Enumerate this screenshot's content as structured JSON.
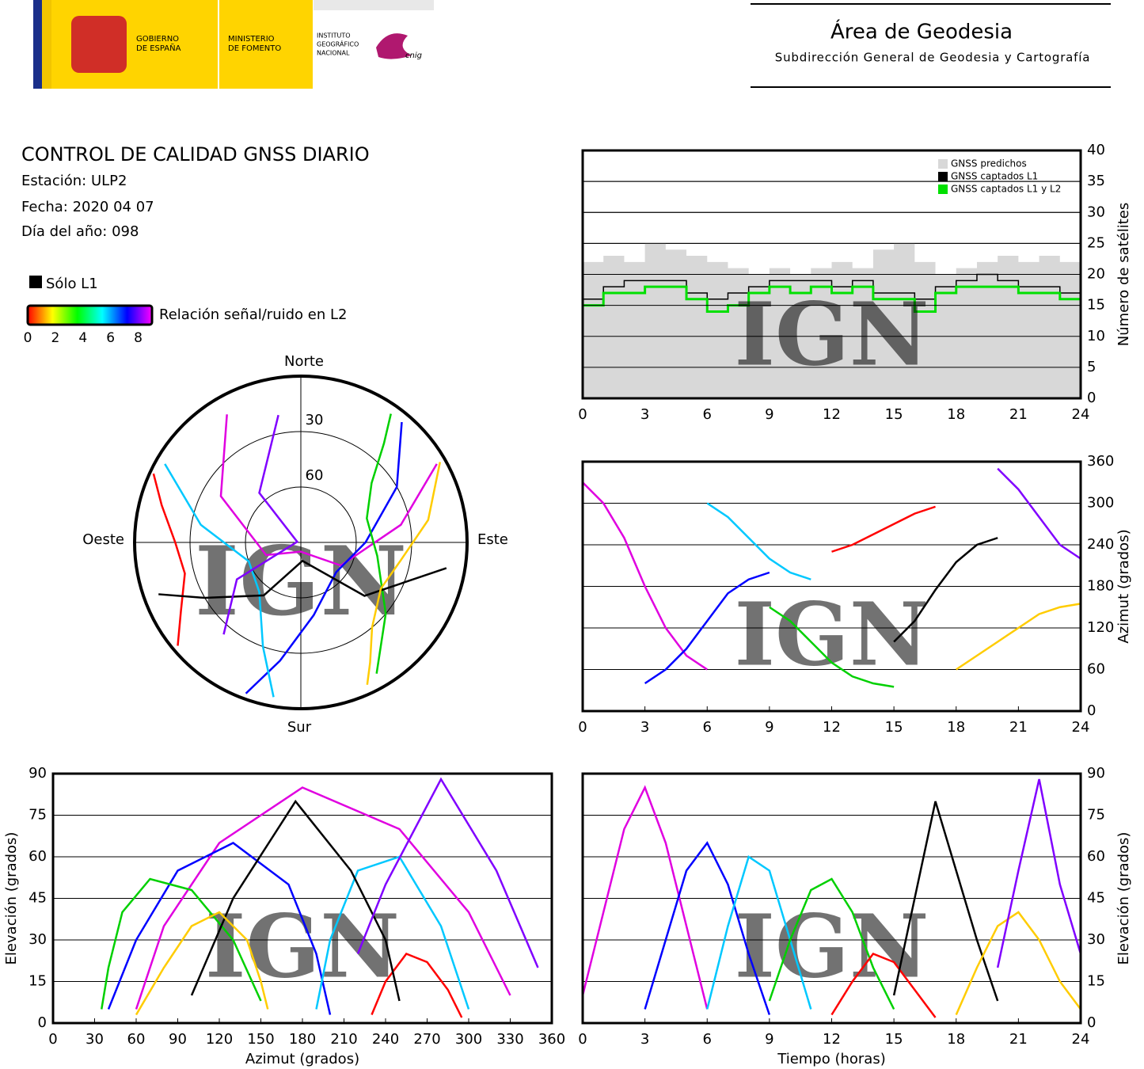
{
  "logos": {
    "gobierno": [
      "GOBIERNO",
      "DE ESPAÑA"
    ],
    "ministerio": [
      "MINISTERIO",
      "DE FOMENTO"
    ],
    "instituto": [
      "INSTITUTO",
      "GEOGRÁFICO",
      "NACIONAL"
    ],
    "cnig": "cnig"
  },
  "header": {
    "title": "Área de Geodesia",
    "subtitle": "Subdirección General de Geodesia y Cartografía"
  },
  "report": {
    "title": "CONTROL DE CALIDAD GNSS DIARIO",
    "station": "Estación: ULP2",
    "date": "Fecha: 2020 04 07",
    "doy": "Día del año: 098"
  },
  "legend": {
    "l1_only": "Sólo L1",
    "l1_color": "#000000",
    "snr_label": "Relación señal/ruido en L2",
    "snr_lim": [
      0,
      9
    ],
    "snr_ticks": [
      0,
      2,
      4,
      6,
      8
    ],
    "snr_colors": [
      "#ff0000",
      "#ffff00",
      "#00ff00",
      "#00ffff",
      "#0000ff",
      "#ff00ff"
    ]
  },
  "watermark": "IGN",
  "chart_data": [
    {
      "type": "polar",
      "rlim": [
        90,
        0
      ],
      "rings": [
        30,
        60
      ],
      "directions": {
        "north": "Norte",
        "east": "Este",
        "south": "Sur",
        "west": "Oeste"
      },
      "series": [
        {
          "color": "#e000e0",
          "azimuth": [
            330,
            300,
            250,
            180,
            120,
            80,
            60
          ],
          "elevation": [
            10,
            40,
            70,
            85,
            65,
            35,
            5
          ]
        },
        {
          "color": "#0000ff",
          "azimuth": [
            40,
            60,
            90,
            130,
            170,
            190,
            200
          ],
          "elevation": [
            5,
            30,
            55,
            65,
            50,
            25,
            3
          ]
        },
        {
          "color": "#00c8ff",
          "azimuth": [
            300,
            280,
            250,
            220,
            200,
            190
          ],
          "elevation": [
            5,
            35,
            60,
            55,
            30,
            5
          ]
        },
        {
          "color": "#00d000",
          "azimuth": [
            150,
            130,
            100,
            70,
            50,
            40,
            35
          ],
          "elevation": [
            8,
            30,
            48,
            52,
            40,
            20,
            5
          ]
        },
        {
          "color": "#ff0000",
          "azimuth": [
            230,
            240,
            255,
            270,
            285,
            295
          ],
          "elevation": [
            3,
            15,
            25,
            22,
            12,
            2
          ]
        },
        {
          "color": "#000000",
          "azimuth": [
            100,
            130,
            175,
            215,
            240,
            250
          ],
          "elevation": [
            10,
            45,
            80,
            55,
            30,
            8
          ]
        },
        {
          "color": "#ffcc00",
          "azimuth": [
            60,
            80,
            100,
            120,
            140,
            150,
            155
          ],
          "elevation": [
            3,
            20,
            35,
            40,
            30,
            15,
            5
          ]
        },
        {
          "color": "#8000ff",
          "azimuth": [
            350,
            320,
            280,
            240,
            220
          ],
          "elevation": [
            20,
            55,
            88,
            50,
            25
          ]
        }
      ]
    },
    {
      "type": "step",
      "ylabel": "Número de satélites",
      "y_axis_side": "right",
      "legend": "top-right",
      "xlim": [
        0,
        24
      ],
      "xticks": [
        0,
        3,
        6,
        9,
        12,
        15,
        18,
        21,
        24
      ],
      "ylim": [
        0,
        40
      ],
      "yticks": [
        0,
        5,
        10,
        15,
        20,
        25,
        30,
        35,
        40
      ],
      "grid": true,
      "x": [
        0,
        1,
        2,
        3,
        4,
        5,
        6,
        7,
        8,
        9,
        10,
        11,
        12,
        13,
        14,
        15,
        16,
        17,
        18,
        19,
        20,
        21,
        22,
        23,
        24
      ],
      "series": [
        {
          "name": "GNSS predichos",
          "color": "#d8d8d8",
          "fill": true,
          "values": [
            22,
            23,
            22,
            25,
            24,
            23,
            22,
            21,
            20,
            21,
            20,
            21,
            22,
            21,
            24,
            25,
            22,
            20,
            21,
            22,
            23,
            22,
            23,
            22,
            21
          ]
        },
        {
          "name": "GNSS captados L1",
          "color": "#000000",
          "values": [
            16,
            18,
            19,
            19,
            19,
            17,
            16,
            17,
            18,
            19,
            19,
            19,
            18,
            19,
            17,
            17,
            16,
            18,
            19,
            20,
            19,
            18,
            18,
            17,
            16
          ]
        },
        {
          "name": "GNSS captados L1 y L2",
          "color": "#00e000",
          "values": [
            15,
            17,
            17,
            18,
            18,
            16,
            14,
            15,
            17,
            18,
            17,
            18,
            17,
            18,
            16,
            16,
            14,
            17,
            18,
            18,
            18,
            17,
            17,
            16,
            16
          ]
        }
      ]
    },
    {
      "type": "line",
      "ylabel": "Azimut (grados)",
      "y_axis_side": "right",
      "xlim": [
        0,
        24
      ],
      "xticks": [
        0,
        3,
        6,
        9,
        12,
        15,
        18,
        21,
        24
      ],
      "ylim": [
        0,
        360
      ],
      "yticks": [
        0,
        60,
        120,
        180,
        240,
        300,
        360
      ],
      "grid": true,
      "series": [
        {
          "color": "#e000e0",
          "x": [
            0,
            1,
            2,
            3,
            4,
            5,
            6
          ],
          "values": [
            330,
            300,
            250,
            180,
            120,
            80,
            60
          ]
        },
        {
          "color": "#0000ff",
          "x": [
            3,
            4,
            5,
            6,
            7,
            8,
            9
          ],
          "values": [
            40,
            60,
            90,
            130,
            170,
            190,
            200
          ]
        },
        {
          "color": "#00c8ff",
          "x": [
            6,
            7,
            8,
            9,
            10,
            11
          ],
          "values": [
            300,
            280,
            250,
            220,
            200,
            190
          ]
        },
        {
          "color": "#00d000",
          "x": [
            9,
            10,
            11,
            12,
            13,
            14,
            15
          ],
          "values": [
            150,
            130,
            100,
            70,
            50,
            40,
            35
          ]
        },
        {
          "color": "#ff0000",
          "x": [
            12,
            13,
            14,
            15,
            16,
            17
          ],
          "values": [
            230,
            240,
            255,
            270,
            285,
            295
          ]
        },
        {
          "color": "#000000",
          "x": [
            15,
            16,
            17,
            18,
            19,
            20
          ],
          "values": [
            100,
            130,
            175,
            215,
            240,
            250
          ]
        },
        {
          "color": "#ffcc00",
          "x": [
            18,
            19,
            20,
            21,
            22,
            23,
            24
          ],
          "values": [
            60,
            80,
            100,
            120,
            140,
            150,
            155
          ]
        },
        {
          "color": "#8000ff",
          "x": [
            20,
            21,
            22,
            23,
            24
          ],
          "values": [
            350,
            320,
            280,
            240,
            220
          ]
        }
      ]
    },
    {
      "type": "line",
      "xlabel": "Azimut (grados)",
      "ylabel": "Elevación (grados)",
      "y_axis_side": "left",
      "xlim": [
        0,
        360
      ],
      "xticks": [
        0,
        30,
        60,
        90,
        120,
        150,
        180,
        210,
        240,
        270,
        300,
        330,
        360
      ],
      "ylim": [
        0,
        90
      ],
      "yticks": [
        0,
        15,
        30,
        45,
        60,
        75,
        90
      ],
      "grid": true,
      "series": [
        {
          "color": "#e000e0",
          "x": [
            330,
            300,
            250,
            180,
            120,
            80,
            60
          ],
          "values": [
            10,
            40,
            70,
            85,
            65,
            35,
            5
          ]
        },
        {
          "color": "#0000ff",
          "x": [
            40,
            60,
            90,
            130,
            170,
            190,
            200
          ],
          "values": [
            5,
            30,
            55,
            65,
            50,
            25,
            3
          ]
        },
        {
          "color": "#00c8ff",
          "x": [
            300,
            280,
            250,
            220,
            200,
            190
          ],
          "values": [
            5,
            35,
            60,
            55,
            30,
            5
          ]
        },
        {
          "color": "#00d000",
          "x": [
            150,
            130,
            100,
            70,
            50,
            40,
            35
          ],
          "values": [
            8,
            30,
            48,
            52,
            40,
            20,
            5
          ]
        },
        {
          "color": "#ff0000",
          "x": [
            230,
            240,
            255,
            270,
            285,
            295
          ],
          "values": [
            3,
            15,
            25,
            22,
            12,
            2
          ]
        },
        {
          "color": "#000000",
          "x": [
            100,
            130,
            175,
            215,
            240,
            250
          ],
          "values": [
            10,
            45,
            80,
            55,
            30,
            8
          ]
        },
        {
          "color": "#ffcc00",
          "x": [
            60,
            80,
            100,
            120,
            140,
            150,
            155
          ],
          "values": [
            3,
            20,
            35,
            40,
            30,
            15,
            5
          ]
        },
        {
          "color": "#8000ff",
          "x": [
            350,
            320,
            280,
            240,
            220
          ],
          "values": [
            20,
            55,
            88,
            50,
            25
          ]
        }
      ]
    },
    {
      "type": "line",
      "xlabel": "Tiempo (horas)",
      "ylabel": "Elevación (grados)",
      "y_axis_side": "right",
      "xlim": [
        0,
        24
      ],
      "xticks": [
        0,
        3,
        6,
        9,
        12,
        15,
        18,
        21,
        24
      ],
      "ylim": [
        0,
        90
      ],
      "yticks": [
        0,
        15,
        30,
        45,
        60,
        75,
        90
      ],
      "grid": true,
      "series": [
        {
          "color": "#e000e0",
          "x": [
            0,
            1,
            2,
            3,
            4,
            5,
            6
          ],
          "values": [
            10,
            40,
            70,
            85,
            65,
            35,
            5
          ]
        },
        {
          "color": "#0000ff",
          "x": [
            3,
            4,
            5,
            6,
            7,
            8,
            9
          ],
          "values": [
            5,
            30,
            55,
            65,
            50,
            25,
            3
          ]
        },
        {
          "color": "#00c8ff",
          "x": [
            6,
            7,
            8,
            9,
            10,
            11
          ],
          "values": [
            5,
            35,
            60,
            55,
            30,
            5
          ]
        },
        {
          "color": "#00d000",
          "x": [
            9,
            10,
            11,
            12,
            13,
            14,
            15
          ],
          "values": [
            8,
            30,
            48,
            52,
            40,
            20,
            5
          ]
        },
        {
          "color": "#ff0000",
          "x": [
            12,
            13,
            14,
            15,
            16,
            17
          ],
          "values": [
            3,
            15,
            25,
            22,
            12,
            2
          ]
        },
        {
          "color": "#000000",
          "x": [
            15,
            16,
            17,
            18,
            19,
            20
          ],
          "values": [
            10,
            45,
            80,
            55,
            30,
            8
          ]
        },
        {
          "color": "#ffcc00",
          "x": [
            18,
            19,
            20,
            21,
            22,
            23,
            24
          ],
          "values": [
            3,
            20,
            35,
            40,
            30,
            15,
            5
          ]
        },
        {
          "color": "#8000ff",
          "x": [
            20,
            21,
            22,
            23,
            24
          ],
          "values": [
            20,
            55,
            88,
            50,
            25
          ]
        }
      ]
    }
  ]
}
